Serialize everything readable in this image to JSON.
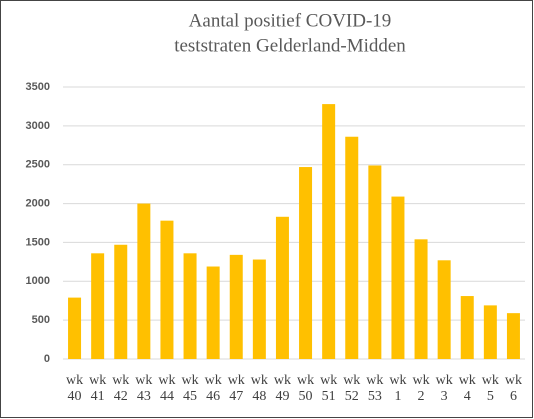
{
  "chart_data": {
    "type": "bar",
    "title": [
      "Aantal positief COVID-19",
      "teststraten Gelderland-Midden"
    ],
    "categories": [
      "wk 40",
      "wk 41",
      "wk 42",
      "wk 43",
      "wk 44",
      "wk 45",
      "wk 46",
      "wk 47",
      "wk 48",
      "wk 49",
      "wk 50",
      "wk 51",
      "wk 52",
      "wk 53",
      "wk 1",
      "wk 2",
      "wk 3",
      "wk 4",
      "wk 5",
      "wk 6"
    ],
    "values": [
      790,
      1360,
      1470,
      2000,
      1780,
      1360,
      1190,
      1340,
      1280,
      1830,
      2470,
      3280,
      2860,
      2490,
      2090,
      1540,
      1270,
      810,
      690,
      590
    ],
    "color": "#ffc000",
    "ylim": [
      0,
      3500
    ],
    "yticks": [
      0,
      500,
      1000,
      1500,
      2000,
      2500,
      3000,
      3500
    ],
    "grid": true
  }
}
